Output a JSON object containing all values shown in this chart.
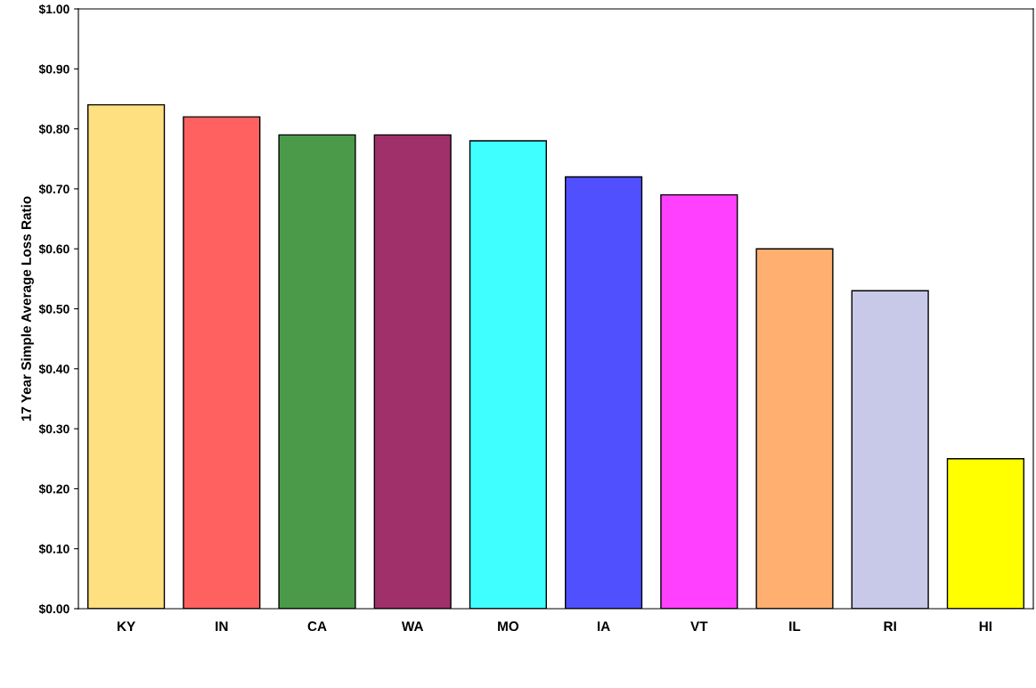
{
  "chart_data": {
    "type": "bar",
    "ylabel": "17 Year Simple Average Loss Ratio",
    "categories": [
      "KY",
      "IN",
      "CA",
      "WA",
      "MO",
      "IA",
      "VT",
      "IL",
      "RI",
      "HI"
    ],
    "values": [
      0.84,
      0.82,
      0.79,
      0.79,
      0.78,
      0.72,
      0.69,
      0.6,
      0.53,
      0.25
    ],
    "colors": [
      "#ffe080",
      "#ff6060",
      "#4a9a4a",
      "#a0306a",
      "#40ffff",
      "#5050ff",
      "#ff40ff",
      "#ffb070",
      "#c8c8e8",
      "#ffff00"
    ],
    "ylim": [
      0,
      1
    ],
    "yticks": [
      {
        "value": 0,
        "label": "$0.00"
      },
      {
        "value": 0.1,
        "label": "$0.10"
      },
      {
        "value": 0.2,
        "label": "$0.20"
      },
      {
        "value": 0.3,
        "label": "$0.30"
      },
      {
        "value": 0.4,
        "label": "$0.40"
      },
      {
        "value": 0.5,
        "label": "$0.50"
      },
      {
        "value": 0.6,
        "label": "$0.60"
      },
      {
        "value": 0.7,
        "label": "$0.70"
      },
      {
        "value": 0.8,
        "label": "$0.80"
      },
      {
        "value": 0.9,
        "label": "$0.90"
      },
      {
        "value": 1,
        "label": "$1.00"
      }
    ],
    "grid": false,
    "legend": false
  }
}
